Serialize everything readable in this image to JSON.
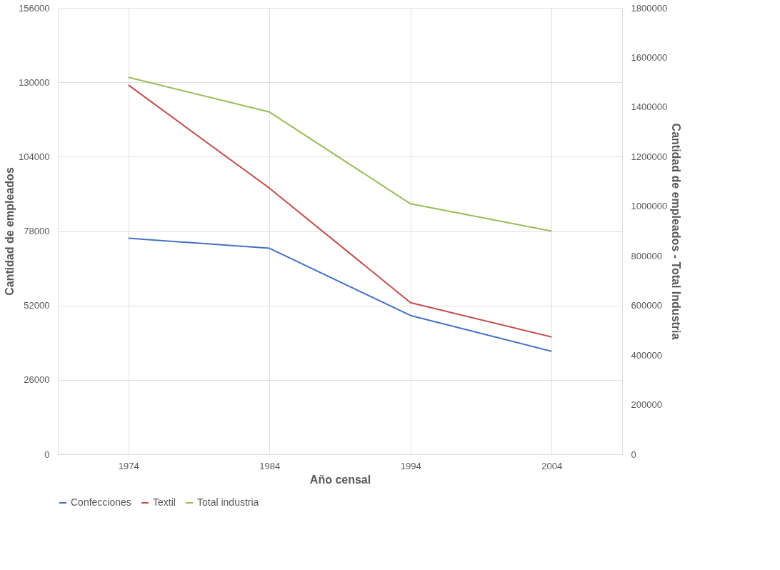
{
  "chart_data": {
    "type": "line",
    "xlabel": "Año censal",
    "ylabel": "Cantidad de empleados",
    "y2label": "Cantidad de empleados - Total Industria",
    "categories": [
      "1974",
      "1984",
      "1994",
      "2004"
    ],
    "series": [
      {
        "name": "Confecciones",
        "color": "#4472c4",
        "values": [
          75500,
          72000,
          48500,
          36000
        ]
      },
      {
        "name": "Textil",
        "color": "#c0504d",
        "values": [
          129000,
          93000,
          53000,
          41000
        ]
      },
      {
        "name": "Total industria",
        "color": "#9bbb59",
        "axis": "y2",
        "values": [
          1520000,
          1380000,
          1010000,
          900000
        ]
      }
    ],
    "ylim": [
      0,
      156000
    ],
    "yticks": [
      0,
      26000,
      52000,
      78000,
      104000,
      130000,
      156000
    ],
    "y2lim": [
      0,
      1800000
    ],
    "y2ticks": [
      0,
      200000,
      400000,
      600000,
      800000,
      1000000,
      1200000,
      1400000,
      1600000,
      1800000
    ],
    "grid": true,
    "legend": "bottom",
    "marker": "none",
    "line_style": "solid"
  }
}
